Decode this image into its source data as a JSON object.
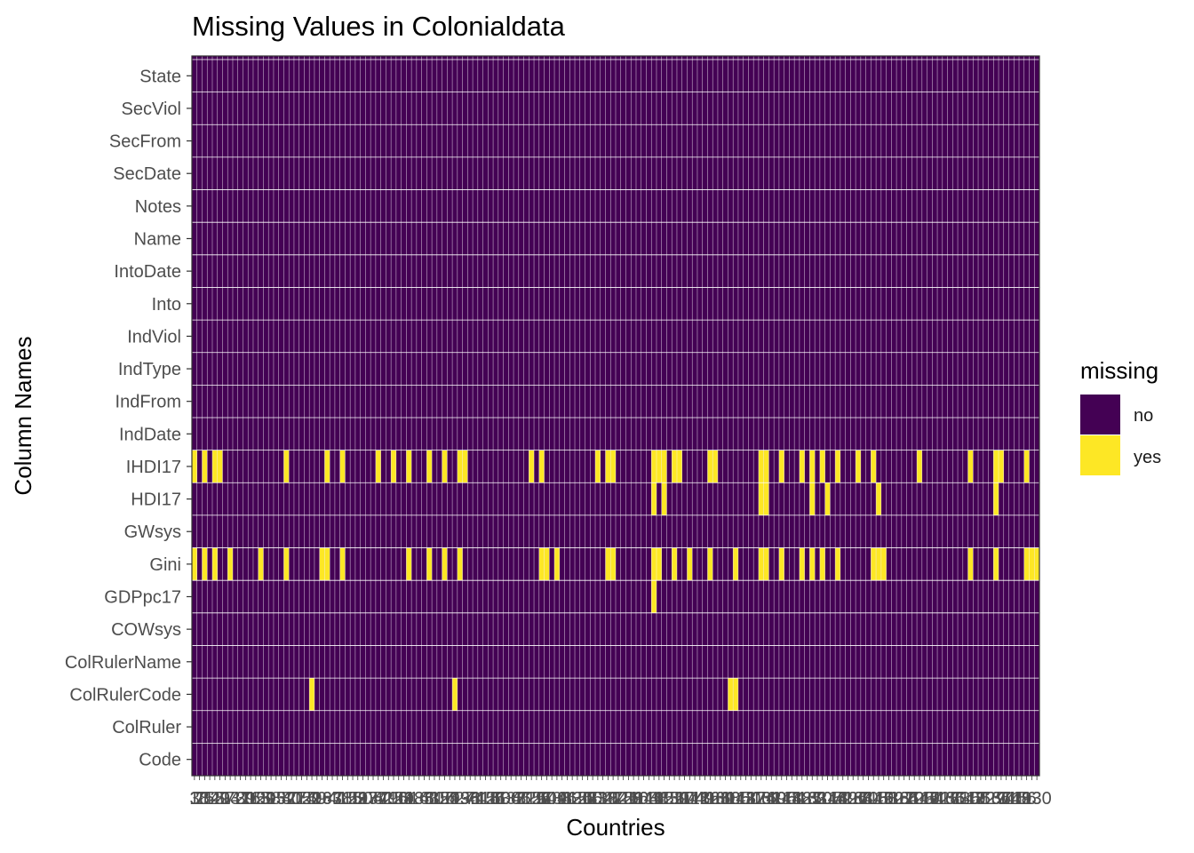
{
  "chart_data": {
    "type": "heatmap",
    "title": "Missing Values in Colonialdata",
    "xlabel": "Countries",
    "ylabel": "Column Names",
    "n_observations": 166,
    "x_tick_labels_note": "166 overplotted numeric observation labels",
    "rows": [
      "State",
      "SecViol",
      "SecFrom",
      "SecDate",
      "Notes",
      "Name",
      "IntoDate",
      "Into",
      "IndViol",
      "IndType",
      "IndFrom",
      "IndDate",
      "IHDI17",
      "HDI17",
      "GWsys",
      "Gini",
      "GDPpc17",
      "COWsys",
      "ColRulerName",
      "ColRulerCode",
      "ColRuler",
      "Code"
    ],
    "missing_indices": {
      "IHDI17": [
        0,
        2,
        4,
        5,
        18,
        26,
        29,
        36,
        39,
        42,
        46,
        49,
        52,
        53,
        66,
        68,
        79,
        81,
        82,
        90,
        91,
        92,
        94,
        95,
        101,
        102,
        111,
        112,
        115,
        119,
        121,
        123,
        126,
        130,
        133,
        142,
        152,
        157,
        158,
        163
      ],
      "HDI17": [
        90,
        92,
        111,
        112,
        121,
        124,
        134,
        157
      ],
      "Gini": [
        0,
        2,
        4,
        7,
        13,
        18,
        25,
        26,
        29,
        42,
        46,
        49,
        52,
        68,
        69,
        71,
        81,
        82,
        90,
        91,
        94,
        97,
        101,
        106,
        111,
        112,
        115,
        119,
        121,
        123,
        126,
        133,
        134,
        135,
        152,
        157,
        163,
        164,
        165
      ],
      "GDPpc17": [
        90
      ],
      "ColRulerCode": [
        23,
        51,
        105,
        106
      ]
    },
    "legend": {
      "title": "missing",
      "entries": [
        {
          "label": "no",
          "color": "#440154"
        },
        {
          "label": "yes",
          "color": "#fde725"
        }
      ]
    },
    "colors": {
      "no": "#440154",
      "yes": "#fde725",
      "grid": "#ffffff",
      "panel_border": "#333333"
    }
  }
}
